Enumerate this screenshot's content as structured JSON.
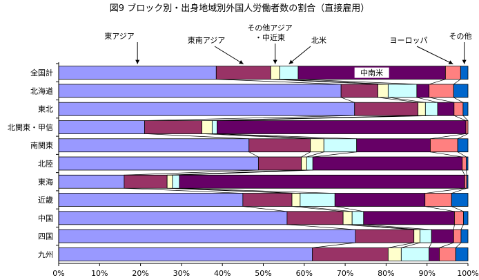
{
  "chart_data": {
    "type": "bar",
    "orientation": "horizontal",
    "stacked": "percent",
    "title": "図9 ブロック別・出身地域別外国人労働者数の割合（直接雇用）",
    "categories": [
      "全国計",
      "北海道",
      "東北",
      "北関東・甲信",
      "南関東",
      "北陸",
      "東海",
      "近畿",
      "中国",
      "四国",
      "九州"
    ],
    "x_ticks": [
      "0%",
      "10%",
      "20%",
      "30%",
      "40%",
      "50%",
      "60%",
      "70%",
      "80%",
      "90%",
      "100%"
    ],
    "xlim": [
      0,
      100
    ],
    "grid": false,
    "series": [
      {
        "name": "東アジア",
        "color": "#9999FF",
        "values": [
          38.5,
          69.0,
          72.3,
          21.0,
          46.5,
          48.8,
          16.0,
          45.0,
          55.8,
          72.5,
          62.0
        ]
      },
      {
        "name": "東南アジア",
        "color": "#993366",
        "values": [
          13.3,
          9.0,
          15.5,
          14.0,
          15.0,
          10.5,
          10.5,
          12.0,
          13.7,
          14.3,
          18.5
        ]
      },
      {
        "name": "その他アジア・中近東",
        "color": "#FFFFCC",
        "values": [
          2.2,
          2.5,
          1.8,
          2.5,
          3.3,
          1.3,
          1.3,
          2.0,
          2.2,
          1.5,
          3.2
        ]
      },
      {
        "name": "北米",
        "color": "#CCFFFF",
        "values": [
          4.5,
          7.0,
          3.0,
          1.2,
          8.0,
          1.5,
          1.7,
          8.5,
          2.8,
          2.8,
          6.8
        ]
      },
      {
        "name": "中南米",
        "color": "#660066",
        "values": [
          36.0,
          3.0,
          4.0,
          60.8,
          18.0,
          36.5,
          69.7,
          22.0,
          22.2,
          5.4,
          2.5
        ]
      },
      {
        "name": "ヨーロッパ",
        "color": "#FF8080",
        "values": [
          3.7,
          6.0,
          2.2,
          0.5,
          6.7,
          1.0,
          0.5,
          6.5,
          2.2,
          1.8,
          4.0
        ]
      },
      {
        "name": "その他",
        "color": "#0066CC",
        "values": [
          1.8,
          3.5,
          1.2,
          0.0,
          2.5,
          0.4,
          0.3,
          4.0,
          1.1,
          1.7,
          3.0
        ]
      }
    ],
    "annotation_series": [
      "東アジア",
      "東南アジア",
      "その他アジア・中近東",
      "北米",
      "ヨーロッパ",
      "その他"
    ],
    "inline_label_series": "中南米"
  }
}
